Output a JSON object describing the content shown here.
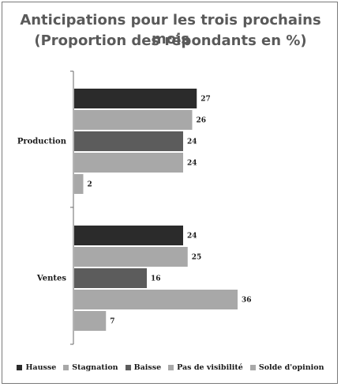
{
  "title": {
    "line1": "Anticipations pour les trois prochains mois",
    "line2": "(Proportion des répondants en %)"
  },
  "chart_data": {
    "type": "bar",
    "orientation": "horizontal",
    "categories": [
      "Production",
      "Ventes"
    ],
    "series": [
      {
        "name": "Hausse",
        "color": "#2b2b2b",
        "values": [
          27,
          24
        ]
      },
      {
        "name": "Stagnation",
        "color": "#a8a8a8",
        "values": [
          26,
          25
        ]
      },
      {
        "name": "Baisse",
        "color": "#5c5c5c",
        "values": [
          24,
          16
        ]
      },
      {
        "name": "Pas de visibilité",
        "color": "#a8a8a8",
        "values": [
          24,
          36
        ]
      },
      {
        "name": "Solde d'opinion",
        "color": "#a8a8a8",
        "values": [
          2,
          7
        ]
      }
    ],
    "xlim": [
      0,
      40
    ],
    "grid": false,
    "legend_position": "bottom"
  }
}
